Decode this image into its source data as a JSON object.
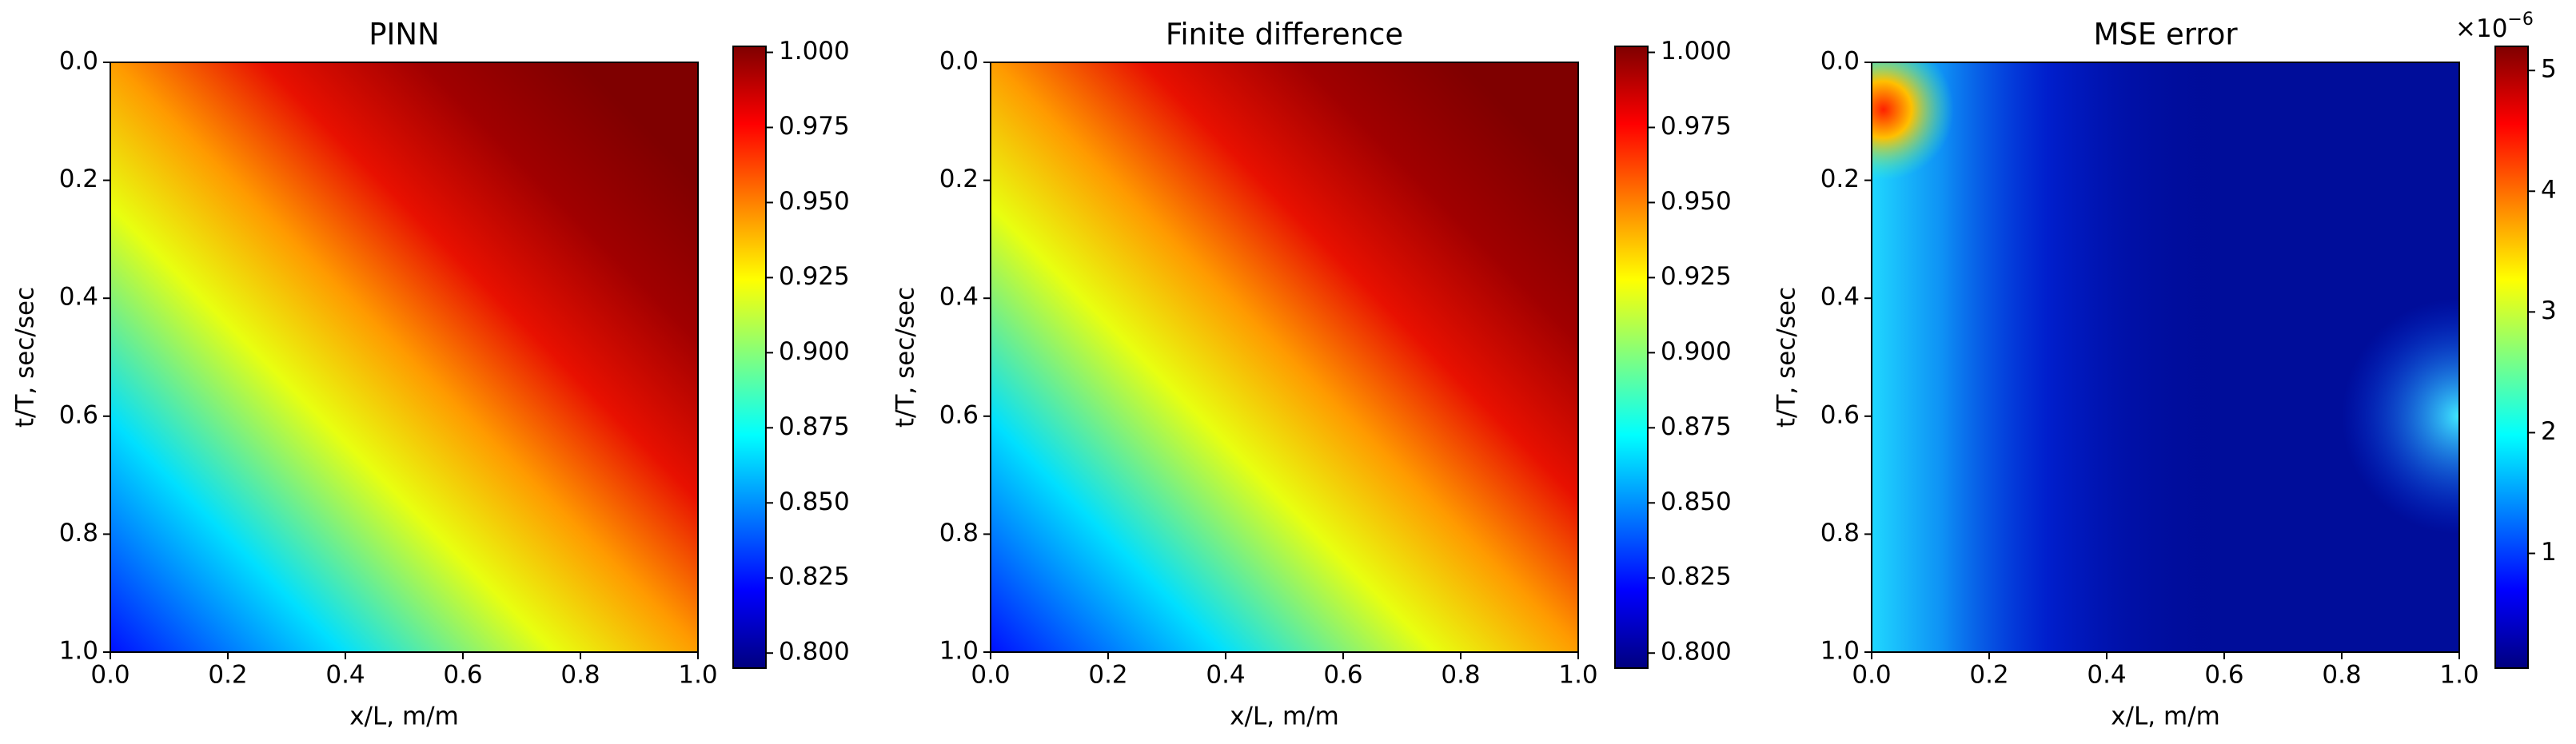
{
  "chart_data": [
    {
      "type": "heatmap",
      "title": "PINN",
      "xlabel": "x/L, m/m",
      "ylabel": "t/T, sec/sec",
      "xlim": [
        0,
        1
      ],
      "xticks": [
        {
          "value": 0,
          "label": "0.0"
        },
        0.2,
        0.4,
        0.6,
        0.8,
        {
          "value": 1,
          "label": "1.0"
        }
      ],
      "ylim": [
        1,
        0
      ],
      "yticks": [
        {
          "value": 0,
          "label": "0.0"
        },
        0.2,
        0.4,
        0.6,
        0.8,
        {
          "value": 1,
          "label": "1.0"
        }
      ],
      "colorbar": {
        "colormap": "jet",
        "lim": [
          0.795,
          1.002
        ],
        "ticks": [
          {
            "value": 0.8,
            "label": "0.800"
          },
          0.825,
          {
            "value": 0.85,
            "label": "0.850"
          },
          0.875,
          {
            "value": 0.9,
            "label": "0.900"
          },
          0.925,
          {
            "value": 0.95,
            "label": "0.950"
          },
          0.975,
          {
            "value": 1,
            "label": "1.000"
          }
        ]
      }
    },
    {
      "type": "heatmap",
      "title": "Finite difference",
      "xlabel": "x/L, m/m",
      "ylabel": "t/T, sec/sec",
      "xlim": [
        0,
        1
      ],
      "xticks": [
        {
          "value": 0,
          "label": "0.0"
        },
        0.2,
        0.4,
        0.6,
        0.8,
        {
          "value": 1,
          "label": "1.0"
        }
      ],
      "ylim": [
        1,
        0
      ],
      "yticks": [
        {
          "value": 0,
          "label": "0.0"
        },
        0.2,
        0.4,
        0.6,
        0.8,
        {
          "value": 1,
          "label": "1.0"
        }
      ],
      "colorbar": {
        "colormap": "jet",
        "lim": [
          0.795,
          1.002
        ],
        "ticks": [
          {
            "value": 0.8,
            "label": "0.800"
          },
          0.825,
          {
            "value": 0.85,
            "label": "0.850"
          },
          0.875,
          {
            "value": 0.9,
            "label": "0.900"
          },
          0.925,
          {
            "value": 0.95,
            "label": "0.950"
          },
          0.975,
          {
            "value": 1,
            "label": "1.000"
          }
        ]
      }
    },
    {
      "type": "heatmap",
      "title": "MSE error",
      "xlabel": "x/L, m/m",
      "ylabel": "t/T, sec/sec",
      "xlim": [
        0,
        1
      ],
      "xticks": [
        {
          "value": 0,
          "label": "0.0"
        },
        0.2,
        0.4,
        0.6,
        0.8,
        {
          "value": 1,
          "label": "1.0"
        }
      ],
      "ylim": [
        1,
        0
      ],
      "yticks": [
        {
          "value": 0,
          "label": "0.0"
        },
        0.2,
        0.4,
        0.6,
        0.8,
        {
          "value": 1,
          "label": "1.0"
        }
      ],
      "colorbar": {
        "colormap": "jet",
        "lim": [
          0.05,
          5.2
        ],
        "ticks": [
          1,
          2,
          3,
          4,
          5
        ],
        "offset_label": {
          "base": "×10",
          "exponent": "−6"
        }
      }
    }
  ]
}
